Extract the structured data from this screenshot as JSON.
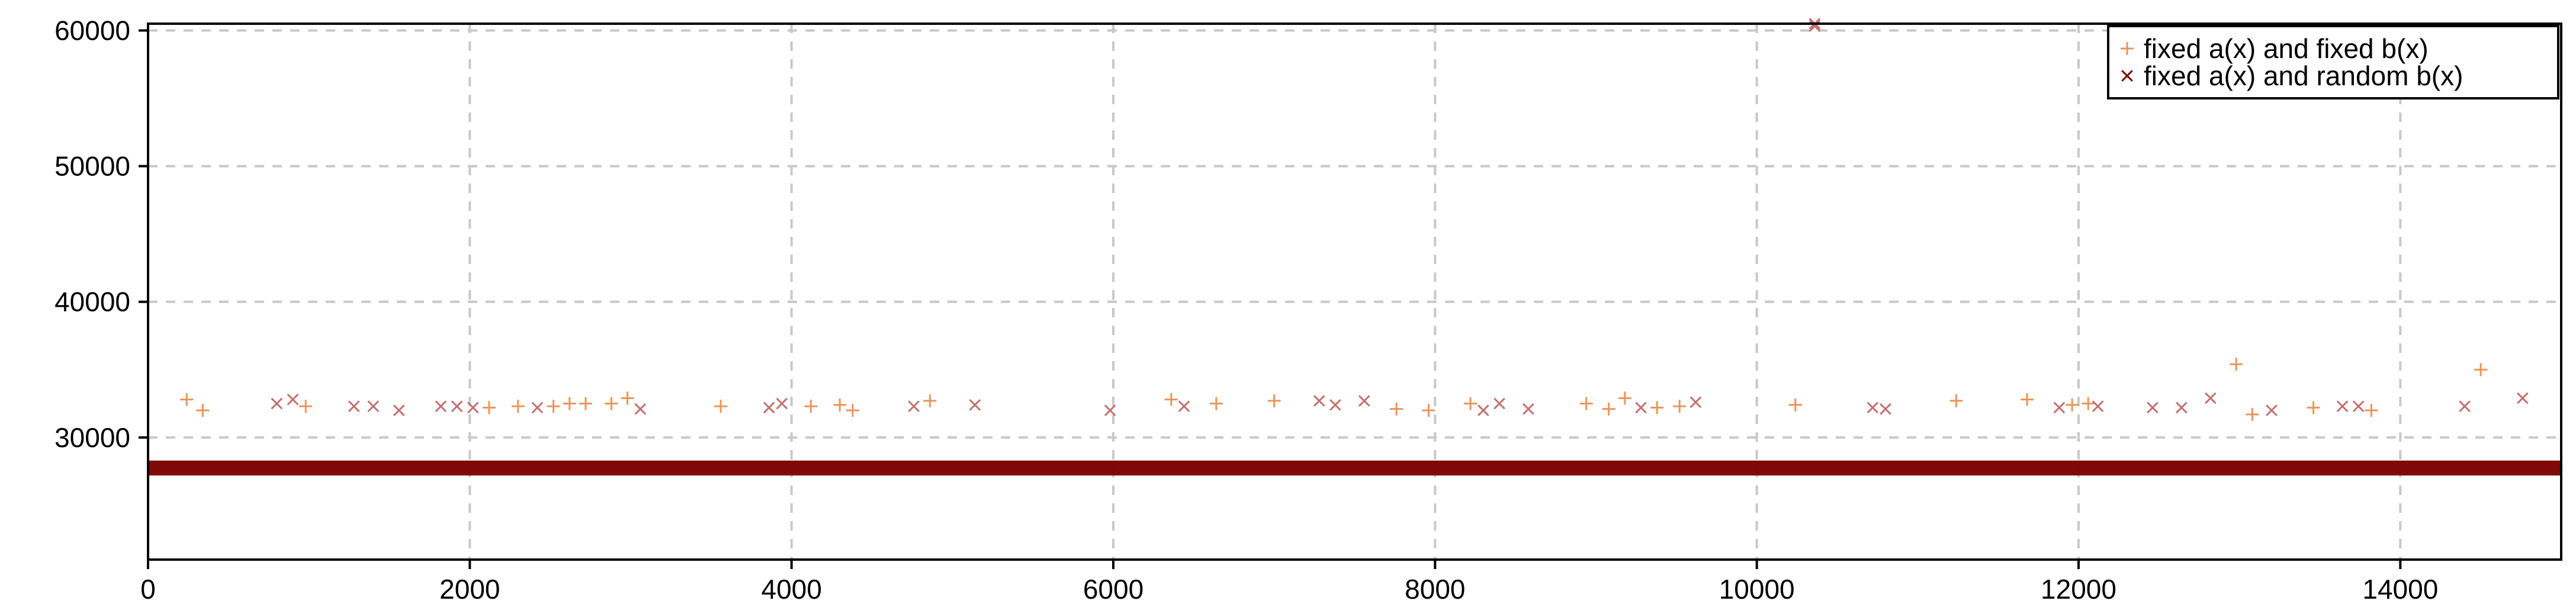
{
  "chart_data": {
    "type": "scatter",
    "title": "",
    "xlabel": "",
    "ylabel": "",
    "xlim": [
      0,
      15000
    ],
    "ylim": [
      21000,
      60500
    ],
    "xticks": [
      0,
      2000,
      4000,
      6000,
      8000,
      10000,
      12000,
      14000
    ],
    "yticks": [
      30000,
      40000,
      50000,
      60000
    ],
    "xtick_labels": [
      "0",
      "2000",
      "4000",
      "6000",
      "8000",
      "10000",
      "12000",
      "14000"
    ],
    "ytick_labels": [
      "30000",
      "40000",
      "50000",
      "60000"
    ],
    "grid": true,
    "legend_position": "top-right",
    "series": [
      {
        "name": "fixed a(x) and fixed b(x)",
        "marker": "plus",
        "color": "#e8955a",
        "baseline_band": {
          "x_start": 0,
          "x_end": 15000,
          "y_low": 27400,
          "y_high": 28200
        },
        "points": [
          [
            240,
            32800
          ],
          [
            340,
            32000
          ],
          [
            980,
            32300
          ],
          [
            2120,
            32200
          ],
          [
            2300,
            32300
          ],
          [
            2520,
            32300
          ],
          [
            2620,
            32500
          ],
          [
            2720,
            32500
          ],
          [
            2880,
            32500
          ],
          [
            2980,
            32900
          ],
          [
            3560,
            32300
          ],
          [
            4120,
            32300
          ],
          [
            4300,
            32400
          ],
          [
            4380,
            32000
          ],
          [
            4860,
            32700
          ],
          [
            6360,
            32800
          ],
          [
            6640,
            32500
          ],
          [
            7000,
            32700
          ],
          [
            7760,
            32100
          ],
          [
            7960,
            32000
          ],
          [
            8220,
            32500
          ],
          [
            8940,
            32500
          ],
          [
            9080,
            32100
          ],
          [
            9180,
            32900
          ],
          [
            9380,
            32200
          ],
          [
            9520,
            32300
          ],
          [
            10240,
            32400
          ],
          [
            11240,
            32700
          ],
          [
            11680,
            32800
          ],
          [
            11960,
            32400
          ],
          [
            12060,
            32500
          ],
          [
            12980,
            35400
          ],
          [
            13080,
            31700
          ],
          [
            13460,
            32200
          ],
          [
            13820,
            32000
          ],
          [
            14500,
            35000
          ]
        ]
      },
      {
        "name": "fixed a(x) and random b(x)",
        "marker": "x",
        "color": "#7a0000",
        "baseline_band": {
          "x_start": 0,
          "x_end": 15000,
          "y_low": 27200,
          "y_high": 28300
        },
        "points": [
          [
            800,
            32500
          ],
          [
            900,
            32800
          ],
          [
            1280,
            32300
          ],
          [
            1400,
            32300
          ],
          [
            1560,
            32000
          ],
          [
            1820,
            32300
          ],
          [
            1920,
            32300
          ],
          [
            2020,
            32200
          ],
          [
            2420,
            32200
          ],
          [
            3060,
            32100
          ],
          [
            3860,
            32200
          ],
          [
            3940,
            32500
          ],
          [
            4760,
            32300
          ],
          [
            5140,
            32400
          ],
          [
            5980,
            32000
          ],
          [
            6440,
            32300
          ],
          [
            7280,
            32700
          ],
          [
            7380,
            32400
          ],
          [
            7560,
            32700
          ],
          [
            8300,
            32000
          ],
          [
            8400,
            32500
          ],
          [
            8580,
            32100
          ],
          [
            9280,
            32200
          ],
          [
            9620,
            32600
          ],
          [
            10360,
            60500
          ],
          [
            10720,
            32200
          ],
          [
            10800,
            32100
          ],
          [
            11880,
            32200
          ],
          [
            12120,
            32300
          ],
          [
            12460,
            32200
          ],
          [
            12640,
            32200
          ],
          [
            12820,
            32900
          ],
          [
            13200,
            32000
          ],
          [
            13640,
            32300
          ],
          [
            13740,
            32300
          ],
          [
            14400,
            32300
          ],
          [
            14760,
            32900
          ]
        ]
      }
    ]
  }
}
